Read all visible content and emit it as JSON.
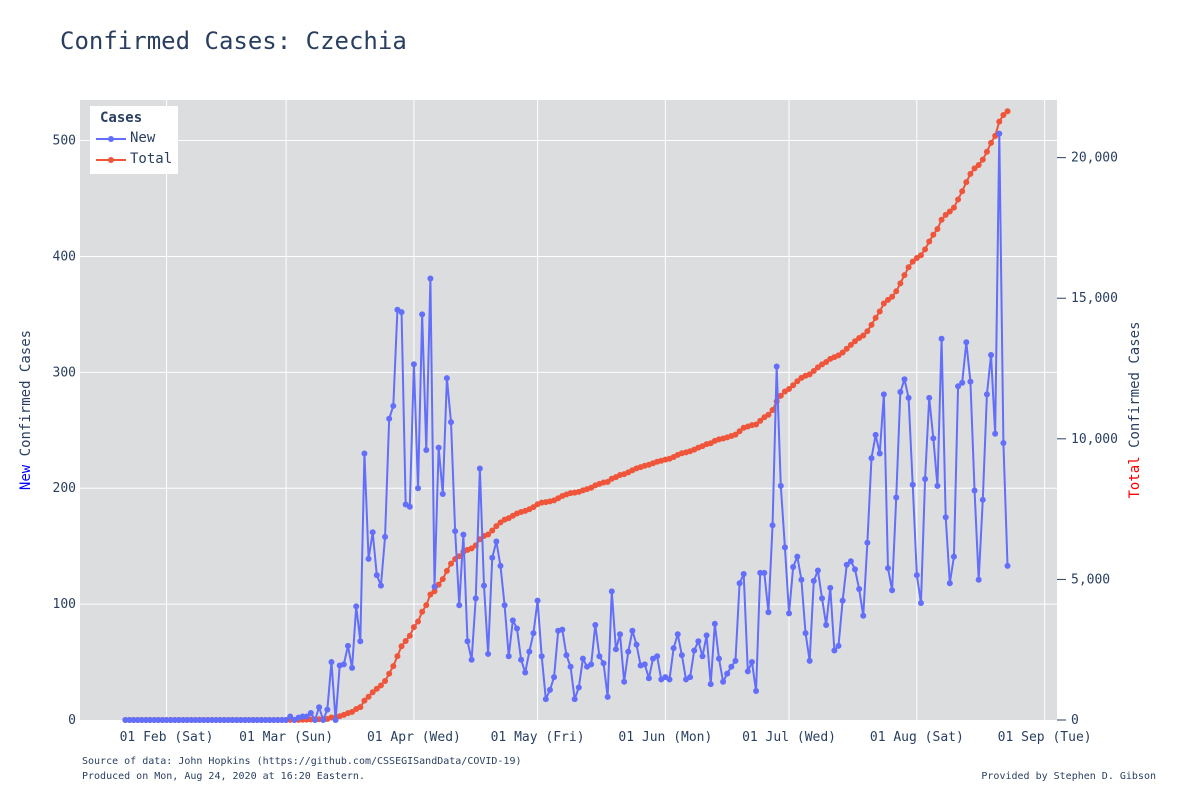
{
  "title": "Confirmed Cases: Czechia",
  "footer": {
    "source": "Source of data: John Hopkins (https://github.com/CSSEGISandData/COVID-19)",
    "produced": "Produced on Mon, Aug 24, 2020 at 16:20 Eastern.",
    "credit": "Provided by Stephen D. Gibson"
  },
  "legend": {
    "title": "Cases",
    "items": [
      "New",
      "Total"
    ]
  },
  "yaxis_left": {
    "prefix": "New",
    "rest": " Confirmed Cases",
    "prefix_color": "#0000ff"
  },
  "yaxis_right": {
    "prefix": "Total",
    "rest": " Confirmed Cases",
    "prefix_color": "#ff0000"
  },
  "colors": {
    "new": "#636efa",
    "total": "#ef553b",
    "plot_bg": "#dcdddf",
    "grid": "#ffffff"
  },
  "chart_data": {
    "type": "line",
    "x_start": "2020-01-22",
    "x_end": "2020-08-23",
    "x_range": [
      "2020-01-11",
      "2020-09-04"
    ],
    "x_ticks": [
      {
        "date": "2020-02-01",
        "label": "01 Feb (Sat)"
      },
      {
        "date": "2020-03-01",
        "label": "01 Mar (Sun)"
      },
      {
        "date": "2020-04-01",
        "label": "01 Apr (Wed)"
      },
      {
        "date": "2020-05-01",
        "label": "01 May (Fri)"
      },
      {
        "date": "2020-06-01",
        "label": "01 Jun (Mon)"
      },
      {
        "date": "2020-07-01",
        "label": "01 Jul (Wed)"
      },
      {
        "date": "2020-08-01",
        "label": "01 Aug (Sat)"
      },
      {
        "date": "2020-09-01",
        "label": "01 Sep (Tue)"
      }
    ],
    "y_left_range": [
      0,
      535
    ],
    "y_left_ticks": [
      0,
      100,
      200,
      300,
      400,
      500
    ],
    "y_right_range": [
      0,
      22050
    ],
    "y_right_ticks": [
      {
        "v": 0,
        "label": "0"
      },
      {
        "v": 5000,
        "label": "5,000"
      },
      {
        "v": 10000,
        "label": "10,000"
      },
      {
        "v": 15000,
        "label": "15,000"
      },
      {
        "v": 20000,
        "label": "20,000"
      }
    ],
    "legend_position": "top-left",
    "grid": true,
    "series": [
      {
        "name": "New",
        "axis": "left",
        "values": [
          0,
          0,
          0,
          0,
          0,
          0,
          0,
          0,
          0,
          0,
          0,
          0,
          0,
          0,
          0,
          0,
          0,
          0,
          0,
          0,
          0,
          0,
          0,
          0,
          0,
          0,
          0,
          0,
          0,
          0,
          0,
          0,
          0,
          0,
          0,
          0,
          0,
          0,
          0,
          0,
          3,
          0,
          2,
          3,
          3,
          6,
          0,
          11,
          0,
          9,
          50,
          0,
          47,
          48,
          64,
          45,
          98,
          68,
          230,
          139,
          162,
          125,
          116,
          158,
          260,
          271,
          354,
          352,
          186,
          184,
          307,
          200,
          350,
          233,
          381,
          115,
          235,
          195,
          295,
          257,
          163,
          99,
          160,
          68,
          52,
          105,
          217,
          116,
          57,
          140,
          154,
          133,
          99,
          55,
          86,
          79,
          52,
          41,
          59,
          75,
          103,
          55,
          18,
          26,
          37,
          77,
          78,
          56,
          46,
          18,
          28,
          53,
          46,
          48,
          82,
          55,
          49,
          20,
          111,
          61,
          74,
          33,
          59,
          77,
          65,
          47,
          48,
          36,
          53,
          55,
          35,
          37,
          35,
          62,
          74,
          56,
          35,
          37,
          60,
          68,
          55,
          73,
          31,
          83,
          53,
          33,
          40,
          46,
          51,
          118,
          126,
          42,
          50,
          25,
          127,
          127,
          93,
          168,
          305,
          202,
          149,
          92,
          132,
          141,
          121,
          75,
          51,
          120,
          129,
          105,
          82,
          114,
          60,
          64,
          103,
          134,
          137,
          130,
          113,
          90,
          153,
          226,
          246,
          230,
          281,
          131,
          112,
          192,
          283,
          294,
          278,
          203,
          125,
          101,
          208,
          278,
          243,
          202,
          329,
          175,
          118,
          141,
          288,
          291,
          326,
          292,
          198,
          121,
          190,
          281,
          315,
          247,
          506,
          239,
          133
        ]
      },
      {
        "name": "Total",
        "axis": "right",
        "values": [
          0,
          0,
          0,
          0,
          0,
          0,
          0,
          0,
          0,
          0,
          0,
          0,
          0,
          0,
          0,
          0,
          0,
          0,
          0,
          0,
          0,
          0,
          0,
          0,
          0,
          0,
          0,
          0,
          0,
          0,
          0,
          0,
          0,
          0,
          0,
          0,
          0,
          0,
          0,
          0,
          3,
          3,
          5,
          8,
          11,
          17,
          17,
          28,
          28,
          37,
          87,
          87,
          134,
          182,
          246,
          291,
          389,
          457,
          687,
          826,
          988,
          1113,
          1229,
          1387,
          1647,
          1918,
          2272,
          2624,
          2810,
          2994,
          3301,
          3501,
          3851,
          4084,
          4465,
          4580,
          4815,
          5010,
          5305,
          5562,
          5725,
          5824,
          5984,
          6052,
          6104,
          6209,
          6426,
          6542,
          6599,
          6739,
          6893,
          7026,
          7125,
          7180,
          7266,
          7345,
          7397,
          7438,
          7497,
          7572,
          7675,
          7730,
          7748,
          7774,
          7811,
          7888,
          7966,
          8022,
          8068,
          8086,
          8114,
          8167,
          8213,
          8261,
          8343,
          8398,
          8447,
          8467,
          8578,
          8639,
          8713,
          8746,
          8805,
          8882,
          8947,
          8994,
          9042,
          9078,
          9131,
          9186,
          9221,
          9258,
          9293,
          9355,
          9429,
          9485,
          9520,
          9557,
          9617,
          9685,
          9740,
          9813,
          9844,
          9927,
          9980,
          10013,
          10053,
          10099,
          10150,
          10268,
          10394,
          10436,
          10486,
          10511,
          10638,
          10765,
          10858,
          11026,
          11331,
          11533,
          11682,
          11774,
          11906,
          12047,
          12168,
          12243,
          12294,
          12414,
          12543,
          12648,
          12730,
          12844,
          12904,
          12968,
          13071,
          13205,
          13342,
          13472,
          13585,
          13675,
          13828,
          14054,
          14300,
          14530,
          14811,
          14942,
          15054,
          15246,
          15529,
          15823,
          16101,
          16304,
          16429,
          16530,
          16738,
          17016,
          17259,
          17461,
          17790,
          17965,
          18083,
          18224,
          18512,
          18803,
          19129,
          19421,
          19619,
          19740,
          19930,
          20211,
          20526,
          20773,
          21279,
          21518,
          21651
        ]
      }
    ]
  }
}
